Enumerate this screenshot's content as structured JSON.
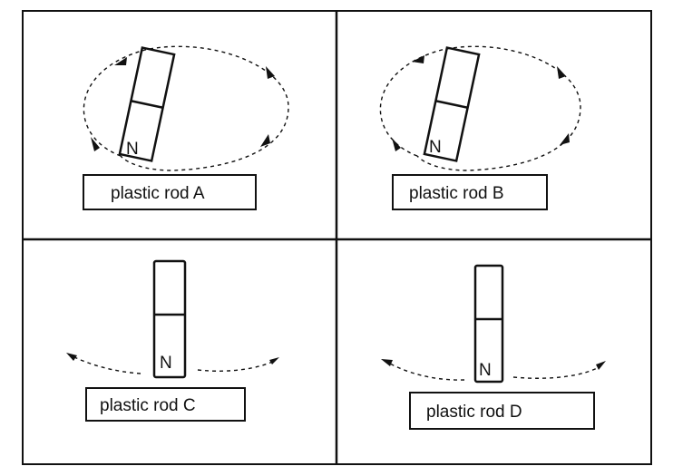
{
  "panels": [
    {
      "rod_label": "plastic rod A",
      "pole_label": "N"
    },
    {
      "rod_label": "plastic rod B",
      "pole_label": "N"
    },
    {
      "rod_label": "plastic rod C",
      "pole_label": "N"
    },
    {
      "rod_label": "plastic rod D",
      "pole_label": "N"
    }
  ],
  "colors": {
    "ink": "#111111",
    "background": "#ffffff"
  }
}
